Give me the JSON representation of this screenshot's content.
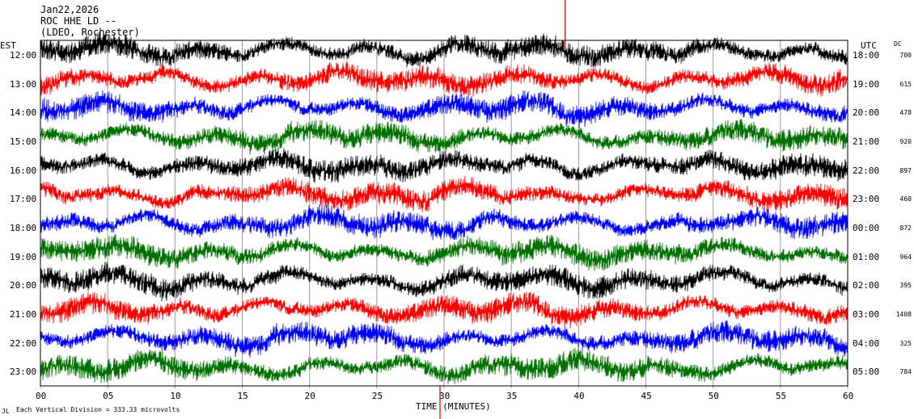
{
  "header": {
    "date": "Jan22,2026",
    "station": "ROC HHE LD --",
    "location": "(LDEO, Rochester)"
  },
  "chart_data": {
    "type": "line",
    "subtype": "helicorder",
    "left_axis_label": "EST",
    "right_axis_label": "UTC",
    "dc_label": "DC",
    "xlabel": "TIME (MINUTES)",
    "xlim": [
      0,
      60
    ],
    "x_ticks": [
      "00",
      "05",
      "10",
      "15",
      "20",
      "25",
      "30",
      "35",
      "40",
      "45",
      "50",
      "55",
      "60"
    ],
    "grid": true,
    "scale_note": "Each Vertical Division =  333.33 microvolts",
    "footer_mark": "JL",
    "series_colors": [
      "#000000",
      "#ff0000",
      "#0000ff",
      "#007000"
    ],
    "rows": [
      {
        "est": "12:00",
        "utc": "18:00",
        "dc": "700"
      },
      {
        "est": "13:00",
        "utc": "19:00",
        "dc": "615"
      },
      {
        "est": "14:00",
        "utc": "20:00",
        "dc": "478"
      },
      {
        "est": "15:00",
        "utc": "21:00",
        "dc": "920"
      },
      {
        "est": "16:00",
        "utc": "22:00",
        "dc": "897"
      },
      {
        "est": "17:00",
        "utc": "23:00",
        "dc": "460"
      },
      {
        "est": "18:00",
        "utc": "00:00",
        "dc": "872"
      },
      {
        "est": "19:00",
        "utc": "01:00",
        "dc": "964"
      },
      {
        "est": "20:00",
        "utc": "02:00",
        "dc": "395"
      },
      {
        "est": "21:00",
        "utc": "03:00",
        "dc": "1408"
      },
      {
        "est": "22:00",
        "utc": "04:00",
        "dc": "325"
      },
      {
        "est": "23:00",
        "utc": "05:00",
        "dc": "784"
      }
    ],
    "event_markers_min": [
      29.7,
      39.0
    ]
  }
}
